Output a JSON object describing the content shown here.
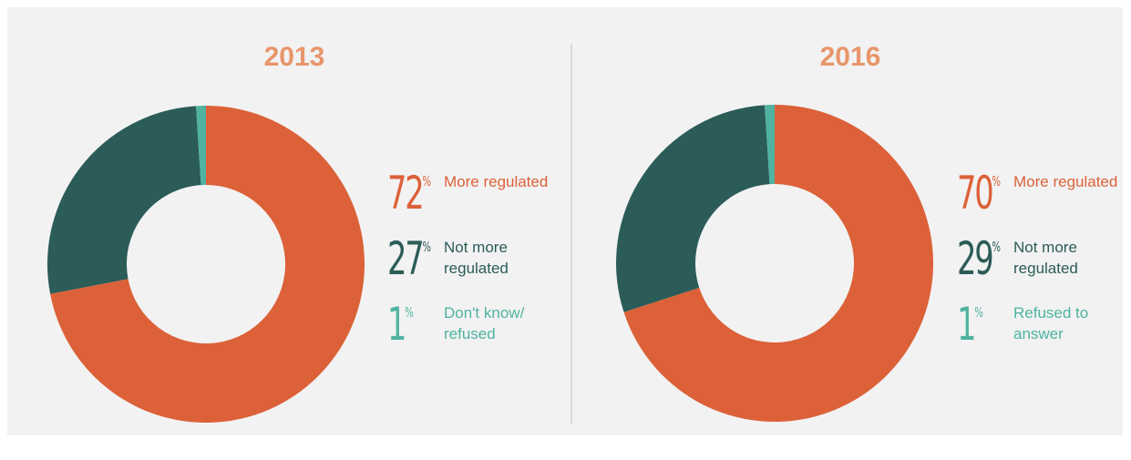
{
  "chart_data": [
    {
      "type": "donut",
      "title": "2013",
      "categories": [
        "More regulated",
        "Not more regulated",
        "Don't know/ refused"
      ],
      "values": [
        72,
        27,
        1
      ],
      "value_labels": [
        "72%",
        "27%",
        "1%"
      ],
      "colors": [
        "#dc6139",
        "#2b5c58",
        "#4fb3a0"
      ]
    },
    {
      "type": "donut",
      "title": "2016",
      "categories": [
        "More regulated",
        "Not more regulated",
        "Refused to answer"
      ],
      "values": [
        70,
        29,
        1
      ],
      "value_labels": [
        "70%",
        "29%",
        "1%"
      ],
      "colors": [
        "#dc6139",
        "#2b5c58",
        "#4fb3a0"
      ]
    }
  ]
}
